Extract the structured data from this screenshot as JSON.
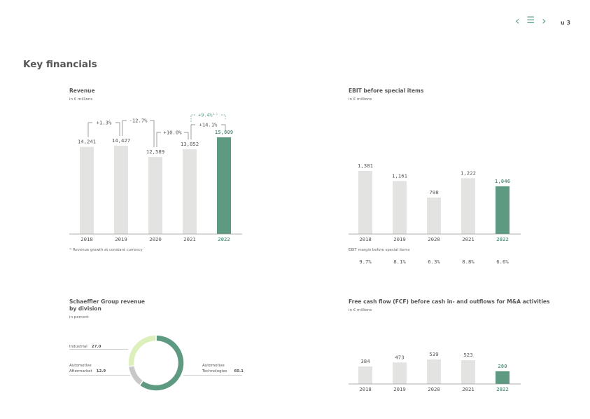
{
  "nav": {
    "prev": "‹",
    "menu": "☰",
    "next": "›",
    "page": "u 3"
  },
  "heading": "Key financials",
  "revenue": {
    "title": "Revenue",
    "subtitle": "in € millions",
    "footnote": "¹⁾ Revenue growth at constant currency",
    "growth": [
      "+1.3%",
      "-12.7%",
      "+10.0%",
      "+14.1%",
      "+9.4%¹⁾"
    ],
    "chart_data": {
      "type": "bar",
      "title": "Revenue",
      "ylabel": "in € millions",
      "categories": [
        "2018",
        "2019",
        "2020",
        "2021",
        "2022"
      ],
      "values": [
        14241,
        14427,
        12589,
        13852,
        15809
      ],
      "value_labels": [
        "14,241",
        "14,427",
        "12,589",
        "13,852",
        "15,809"
      ],
      "highlight": "2022"
    }
  },
  "ebit": {
    "title": "EBIT before special items",
    "subtitle": "in € millions",
    "margin_title": "EBIT margin before special items",
    "margins": [
      "9.7%",
      "8.1%",
      "6.3%",
      "8.8%",
      "6.6%"
    ],
    "chart_data": {
      "type": "bar",
      "title": "EBIT before special items",
      "ylabel": "in € millions",
      "categories": [
        "2018",
        "2019",
        "2020",
        "2021",
        "2022"
      ],
      "values": [
        1381,
        1161,
        798,
        1222,
        1046
      ],
      "value_labels": [
        "1,381",
        "1,161",
        "798",
        "1,222",
        "1,046"
      ],
      "highlight": "2022"
    }
  },
  "division": {
    "title_line1": "Schaeffler Group revenue",
    "title_line2": "by division",
    "subtitle": "in percent",
    "labels": {
      "industrial": "Industrial",
      "industrial_val": "27.0",
      "aftermarket1": "Automotive",
      "aftermarket2": "Aftermarket",
      "aftermarket_val": "12.9",
      "tech1": "Automotive",
      "tech2": "Technologies",
      "tech_val": "60.1"
    },
    "chart_data": {
      "type": "pie",
      "title": "Schaeffler Group revenue by division",
      "categories": [
        "Automotive Technologies",
        "Automotive Aftermarket",
        "Industrial"
      ],
      "values": [
        60.1,
        12.9,
        27.0
      ],
      "colors": [
        "#5e9a82",
        "#c8c8c8",
        "#ddf0bc"
      ]
    }
  },
  "fcf": {
    "title": "Free cash flow (FCF) before cash in- and outflows for M&A activities",
    "subtitle": "in € millions",
    "chart_data": {
      "type": "bar",
      "title": "Free cash flow (FCF) before cash in- and outflows for M&A activities",
      "ylabel": "in € millions",
      "categories": [
        "2018",
        "2019",
        "2020",
        "2021",
        "2022"
      ],
      "values": [
        384,
        473,
        539,
        523,
        280
      ],
      "value_labels": [
        "384",
        "473",
        "539",
        "523",
        "280"
      ],
      "highlight": "2022"
    }
  },
  "colors": {
    "bar": "#e3e3e2",
    "accent": "#5e9a82",
    "axis": "#999999"
  }
}
